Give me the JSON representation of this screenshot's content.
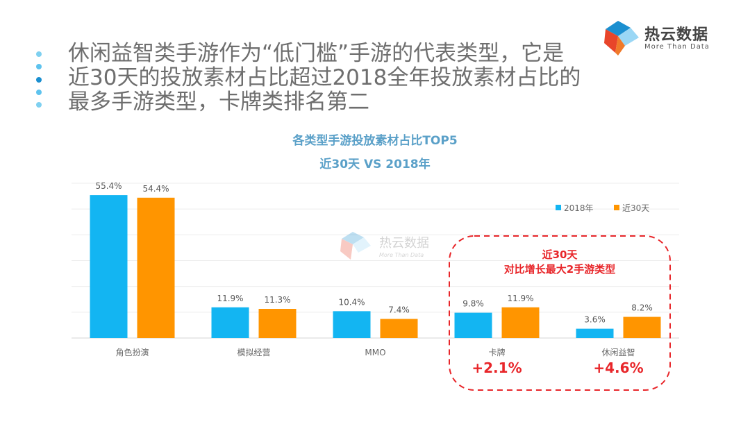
{
  "headline": "休闲益智类手游作为“低门槛”手游的代表类型，它是近30天的投放素材占比超过2018全年投放素材占比的最多手游类型，卡牌类排名第二",
  "logo": {
    "name": "热云数据",
    "tagline": "More Than Data"
  },
  "watermark": {
    "name": "热云数据",
    "tagline": "More Than Data"
  },
  "callout": {
    "line1": "近30天",
    "line2": "对比增长最大2手游类型",
    "color": "#e8262a"
  },
  "chart_data": {
    "type": "bar",
    "title": "各类型手游投放素材占比TOP5",
    "subtitle": "近30天 VS 2018年",
    "categories": [
      "角色扮演",
      "模拟经营",
      "MMO",
      "卡牌",
      "休闲益智"
    ],
    "series": [
      {
        "name": "2018年",
        "color": "#13b5f2",
        "values": [
          55.4,
          11.9,
          10.4,
          9.8,
          3.6
        ],
        "labels": [
          "55.4%",
          "11.9%",
          "10.4%",
          "9.8%",
          "3.6%"
        ]
      },
      {
        "name": "近30天",
        "color": "#ff9500",
        "values": [
          54.4,
          11.3,
          7.4,
          11.9,
          8.2
        ],
        "labels": [
          "54.4%",
          "11.3%",
          "7.4%",
          "11.9%",
          "8.2%"
        ]
      }
    ],
    "growth": [
      "",
      "",
      "",
      "+2.1%",
      "+4.6%"
    ],
    "ylim": [
      0,
      60
    ],
    "grid": true,
    "legend_position": "top-right",
    "xlabel": "",
    "ylabel": ""
  }
}
